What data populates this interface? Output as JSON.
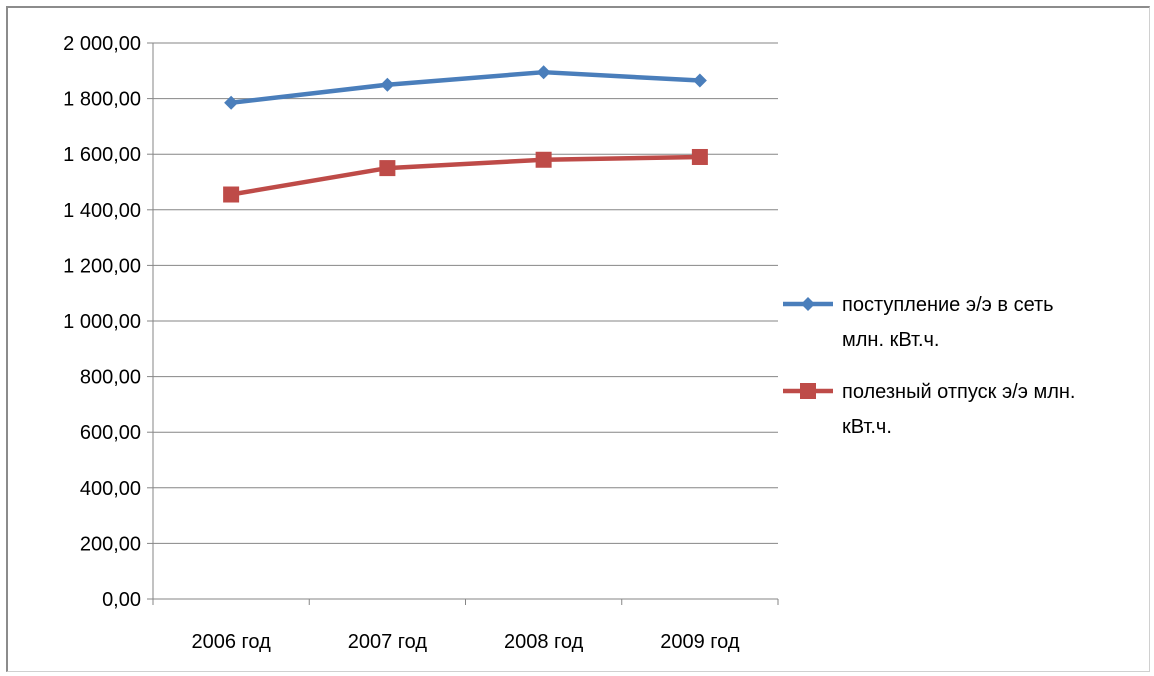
{
  "chart_data": {
    "type": "line",
    "categories": [
      "2006 год",
      "2007 год",
      "2008 год",
      "2009 год"
    ],
    "ylim": [
      0,
      2000
    ],
    "ytick_step": 200,
    "ytick_labels": [
      "0,00",
      "200,00",
      "400,00",
      "600,00",
      "800,00",
      "1 000,00",
      "1 200,00",
      "1 400,00",
      "1 600,00",
      "1 800,00",
      "2 000,00"
    ],
    "grid": true,
    "legend_position": "right",
    "series": [
      {
        "name": "поступление э/э в сеть млн. кВт.ч.",
        "legend_lines": [
          "поступление э/э в сеть",
          "млн. кВт.ч."
        ],
        "values": [
          1785,
          1850,
          1895,
          1865
        ],
        "color": "#4a7ebb",
        "marker": "diamond"
      },
      {
        "name": "полезный отпуск э/э млн. кВт.ч.",
        "legend_lines": [
          "полезный отпуск э/э млн.",
          "кВт.ч."
        ],
        "values": [
          1455,
          1550,
          1580,
          1590
        ],
        "color": "#be4b48",
        "marker": "square"
      }
    ]
  }
}
